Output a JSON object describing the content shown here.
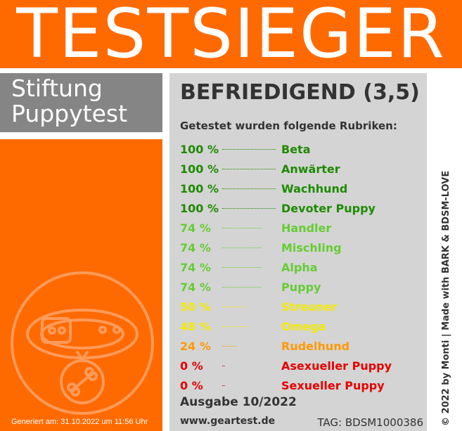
{
  "banner": {
    "title": "TESTSIEGER",
    "color": "#ff6a00"
  },
  "organization": {
    "line1": "Stiftung",
    "line2": "Puppytest"
  },
  "result": {
    "grade": "BEFRIEDIGEND (3,5)",
    "intro": "Getestet wurden folgende Rubriken:",
    "rows": [
      {
        "pct": "100 %",
        "cat": "Beta",
        "color": "#1e8a00",
        "lead": 76
      },
      {
        "pct": "100 %",
        "cat": "Anwärter",
        "color": "#1e8a00",
        "lead": 76
      },
      {
        "pct": "100 %",
        "cat": "Wachhund",
        "color": "#1e8a00",
        "lead": 76
      },
      {
        "pct": "100 %",
        "cat": "Devoter Puppy",
        "color": "#1e8a00",
        "lead": 76
      },
      {
        "pct": "74 %",
        "cat": "Handler",
        "color": "#66cc33",
        "lead": 56
      },
      {
        "pct": "74 %",
        "cat": "Mischling",
        "color": "#66cc33",
        "lead": 56
      },
      {
        "pct": "74 %",
        "cat": "Alpha",
        "color": "#66cc33",
        "lead": 56
      },
      {
        "pct": "74 %",
        "cat": "Puppy",
        "color": "#66cc33",
        "lead": 56
      },
      {
        "pct": "50 %",
        "cat": "Streuner",
        "color": "#f2ea00",
        "lead": 36
      },
      {
        "pct": "48 %",
        "cat": "Omega",
        "color": "#f2ea00",
        "lead": 36
      },
      {
        "pct": "24 %",
        "cat": "Rudelhund",
        "color": "#ff9a00",
        "lead": 20
      },
      {
        "pct": "0 %",
        "cat": "Asexueller Puppy",
        "color": "#e60000",
        "lead": 4
      },
      {
        "pct": "0 %",
        "cat": "Sexueller Puppy",
        "color": "#e60000",
        "lead": 4
      }
    ]
  },
  "issue": "Ausgabe 10/2022",
  "website": "www.geartest.de",
  "tag": "TAG: BDSM1000386",
  "copyright": "© 2022 by Monti | Made with BARK & BDSM-LOVE",
  "generated": "Generiert am: 31.10.2022 um 11:56 Uhr",
  "seal_icon": "dog-collar-with-bone-tag-icon"
}
